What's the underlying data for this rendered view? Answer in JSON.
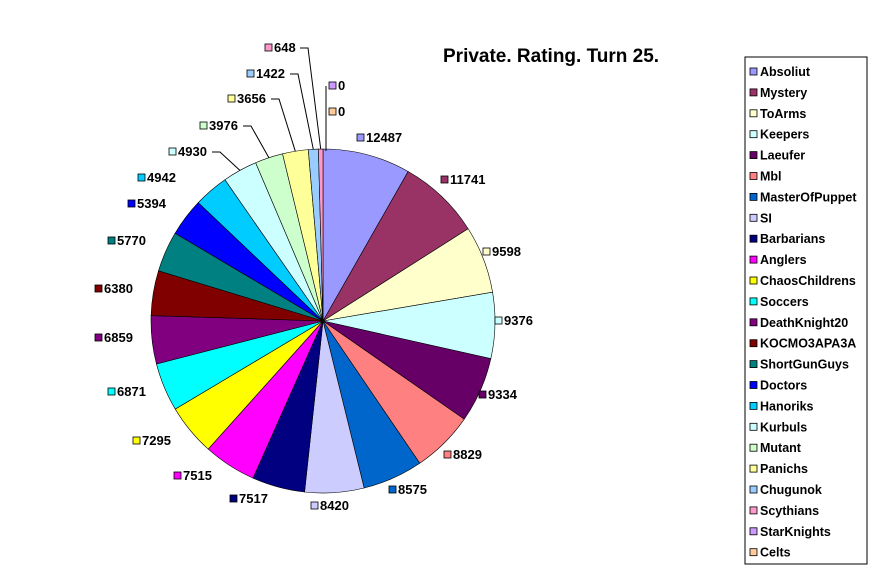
{
  "chart_data": {
    "type": "pie",
    "title": "Private. Rating. Turn 25.",
    "legend_position": "right",
    "slices": [
      {
        "name": "Absoliut",
        "value": 12487,
        "color": "#9999FF"
      },
      {
        "name": "Mystery",
        "value": 11741,
        "color": "#993366"
      },
      {
        "name": "ToArms",
        "value": 9598,
        "color": "#FFFFCC"
      },
      {
        "name": "Keepers",
        "value": 9376,
        "color": "#CCFFFF"
      },
      {
        "name": "Laeufer",
        "value": 9334,
        "color": "#660066"
      },
      {
        "name": "Mbl",
        "value": 8829,
        "color": "#FF8080"
      },
      {
        "name": "MasterOfPuppet",
        "value": 8575,
        "color": "#0066CC"
      },
      {
        "name": "SI",
        "value": 8420,
        "color": "#CCCCFF"
      },
      {
        "name": "Barbarians",
        "value": 7517,
        "color": "#000080"
      },
      {
        "name": "Anglers",
        "value": 7515,
        "color": "#FF00FF"
      },
      {
        "name": "ChaosChildrens",
        "value": 7295,
        "color": "#FFFF00"
      },
      {
        "name": "Soccers",
        "value": 6871,
        "color": "#00FFFF"
      },
      {
        "name": "DeathKnight20",
        "value": 6859,
        "color": "#800080"
      },
      {
        "name": "KOCMO3APA3A",
        "value": 6380,
        "color": "#800000"
      },
      {
        "name": "ShortGunGuys",
        "value": 5770,
        "color": "#008080"
      },
      {
        "name": "Doctors",
        "value": 5394,
        "color": "#0000FF"
      },
      {
        "name": "Hanoriks",
        "value": 4942,
        "color": "#00CCFF"
      },
      {
        "name": "Kurbuls",
        "value": 4930,
        "color": "#CCFFFF"
      },
      {
        "name": "Mutant",
        "value": 3976,
        "color": "#CCFFCC"
      },
      {
        "name": "Panichs",
        "value": 3656,
        "color": "#FFFF99"
      },
      {
        "name": "Chugunok",
        "value": 1422,
        "color": "#99CCFF"
      },
      {
        "name": "Scythians",
        "value": 648,
        "color": "#FF99CC"
      },
      {
        "name": "StarKnights",
        "value": 0,
        "color": "#CC99FF"
      },
      {
        "name": "Celts",
        "value": 0,
        "color": "#FFCC99"
      }
    ]
  }
}
